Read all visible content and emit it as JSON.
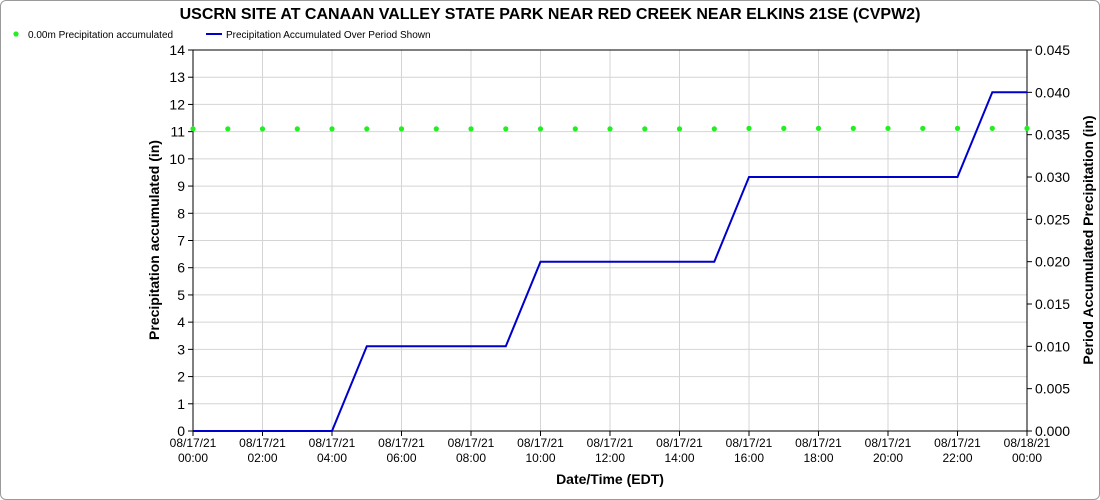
{
  "chart_data": {
    "type": "line",
    "title": "USCRN SITE AT CANAAN VALLEY STATE PARK NEAR RED CREEK NEAR ELKINS 21SE (CVPW2)",
    "xlabel": "Date/Time (EDT)",
    "ylabel_left": "Precipitation accumulated (in)",
    "ylabel_right": "Period Accumulated Precipitation (in)",
    "ylim_left": [
      0,
      14
    ],
    "ylim_right": [
      0,
      0.045
    ],
    "yticks_left": [
      "0",
      "1",
      "2",
      "3",
      "4",
      "5",
      "6",
      "7",
      "8",
      "9",
      "10",
      "11",
      "12",
      "13",
      "14"
    ],
    "yticks_right": [
      "0.000",
      "0.005",
      "0.010",
      "0.015",
      "0.020",
      "0.025",
      "0.030",
      "0.035",
      "0.040",
      "0.045"
    ],
    "xlim_hours": [
      0,
      24
    ],
    "xticks": [
      {
        "hour": 0,
        "date": "08/17/21",
        "time": "00:00"
      },
      {
        "hour": 2,
        "date": "08/17/21",
        "time": "02:00"
      },
      {
        "hour": 4,
        "date": "08/17/21",
        "time": "04:00"
      },
      {
        "hour": 6,
        "date": "08/17/21",
        "time": "06:00"
      },
      {
        "hour": 8,
        "date": "08/17/21",
        "time": "08:00"
      },
      {
        "hour": 10,
        "date": "08/17/21",
        "time": "10:00"
      },
      {
        "hour": 12,
        "date": "08/17/21",
        "time": "12:00"
      },
      {
        "hour": 14,
        "date": "08/17/21",
        "time": "14:00"
      },
      {
        "hour": 16,
        "date": "08/17/21",
        "time": "16:00"
      },
      {
        "hour": 18,
        "date": "08/17/21",
        "time": "18:00"
      },
      {
        "hour": 20,
        "date": "08/17/21",
        "time": "20:00"
      },
      {
        "hour": 22,
        "date": "08/17/21",
        "time": "22:00"
      },
      {
        "hour": 24,
        "date": "08/18/21",
        "time": "00:00"
      }
    ],
    "grid": true,
    "legend_position": "top-left",
    "series": [
      {
        "name": "0.00m Precipitation accumulated",
        "kind": "scatter",
        "axis": "left",
        "color": "#22ee22",
        "x": [
          0,
          1,
          2,
          3,
          4,
          5,
          6,
          7,
          8,
          9,
          10,
          11,
          12,
          13,
          14,
          15,
          16,
          17,
          18,
          19,
          20,
          21,
          22,
          23,
          24
        ],
        "y": [
          11.1,
          11.1,
          11.1,
          11.1,
          11.1,
          11.1,
          11.1,
          11.1,
          11.1,
          11.1,
          11.1,
          11.1,
          11.1,
          11.1,
          11.1,
          11.1,
          11.12,
          11.12,
          11.12,
          11.12,
          11.12,
          11.12,
          11.12,
          11.12,
          11.12
        ]
      },
      {
        "name": "Precipitation Accumulated Over Period Shown",
        "kind": "line",
        "axis": "right",
        "color": "#0000cc",
        "x": [
          0,
          1,
          2,
          3,
          4,
          5,
          6,
          7,
          8,
          9,
          10,
          11,
          12,
          13,
          14,
          15,
          16,
          17,
          18,
          19,
          20,
          21,
          22,
          23,
          24
        ],
        "y": [
          0,
          0,
          0,
          0,
          0,
          0.01,
          0.01,
          0.01,
          0.01,
          0.01,
          0.02,
          0.02,
          0.02,
          0.02,
          0.02,
          0.02,
          0.03,
          0.03,
          0.03,
          0.03,
          0.03,
          0.03,
          0.03,
          0.04,
          0.04
        ]
      }
    ]
  }
}
